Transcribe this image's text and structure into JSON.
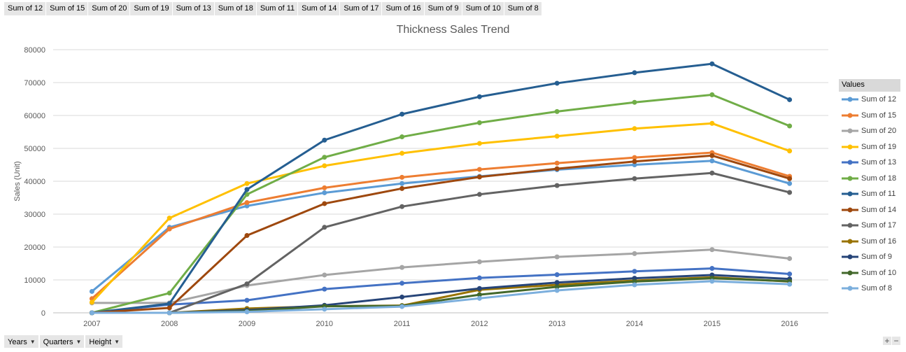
{
  "value_field_buttons": [
    "Sum of 12",
    "Sum of 15",
    "Sum of 20",
    "Sum of 19",
    "Sum of 13",
    "Sum of 18",
    "Sum of 11",
    "Sum of 14",
    "Sum of 17",
    "Sum of 16",
    "Sum of 9",
    "Sum of 10",
    "Sum of 8"
  ],
  "axis_field_buttons": [
    "Years",
    "Quarters",
    "Height"
  ],
  "zoom": {
    "plus": "+",
    "minus": "−"
  },
  "legend_title": "Values",
  "chart_data": {
    "type": "line",
    "title": "Thickness Sales Trend",
    "xlabel": "",
    "ylabel": "Sales (Unit)",
    "ylim": [
      0,
      80000
    ],
    "yticks": [
      0,
      10000,
      20000,
      30000,
      40000,
      50000,
      60000,
      70000,
      80000
    ],
    "ytick_labels": [
      "0",
      "10000",
      "20000",
      "30000",
      "40000",
      "50000",
      "60000",
      "70000",
      "80000"
    ],
    "x": [
      "2007",
      "2008",
      "2009",
      "2010",
      "2011",
      "2012",
      "2013",
      "2014",
      "2015",
      "2016"
    ],
    "grid": "horizontal",
    "legend": "right",
    "series": [
      {
        "name": "Sum of 12",
        "color": "#5b9bd5",
        "values": [
          6500,
          26000,
          32500,
          36500,
          39300,
          41500,
          43500,
          45000,
          46200,
          39300
        ]
      },
      {
        "name": "Sum of 15",
        "color": "#ed7d31",
        "values": [
          4300,
          25500,
          33500,
          38000,
          41200,
          43600,
          45500,
          47200,
          48700,
          41500
        ]
      },
      {
        "name": "Sum of 20",
        "color": "#a5a5a5",
        "values": [
          3000,
          3000,
          8300,
          11500,
          13800,
          15500,
          17000,
          18000,
          19200,
          16500
        ]
      },
      {
        "name": "Sum of 19",
        "color": "#ffc000",
        "values": [
          3200,
          28800,
          39300,
          44700,
          48500,
          51500,
          53700,
          56000,
          57600,
          49200
        ]
      },
      {
        "name": "Sum of 13",
        "color": "#4472c4",
        "values": [
          0,
          2500,
          3800,
          7200,
          9000,
          10600,
          11600,
          12600,
          13500,
          11800
        ]
      },
      {
        "name": "Sum of 18",
        "color": "#70ad47",
        "values": [
          0,
          6000,
          36000,
          47300,
          53500,
          57800,
          61200,
          64000,
          66300,
          56800
        ]
      },
      {
        "name": "Sum of 11",
        "color": "#255e91",
        "values": [
          0,
          2800,
          37500,
          52500,
          60400,
          65700,
          69800,
          73000,
          75700,
          64800
        ]
      },
      {
        "name": "Sum of 14",
        "color": "#9e480e",
        "values": [
          0,
          1500,
          23500,
          33200,
          37800,
          41300,
          43800,
          46000,
          47800,
          40800
        ]
      },
      {
        "name": "Sum of 17",
        "color": "#636363",
        "values": [
          0,
          0,
          8800,
          26000,
          32300,
          36000,
          38700,
          40800,
          42500,
          36600
        ]
      },
      {
        "name": "Sum of 16",
        "color": "#997300",
        "values": [
          0,
          0,
          1300,
          2000,
          2200,
          7000,
          8500,
          9800,
          10800,
          9500
        ]
      },
      {
        "name": "Sum of 9",
        "color": "#264478",
        "values": [
          0,
          0,
          800,
          2300,
          4800,
          7400,
          9200,
          10500,
          11500,
          10300
        ]
      },
      {
        "name": "Sum of 10",
        "color": "#43682b",
        "values": [
          0,
          0,
          500,
          2000,
          2100,
          5500,
          7900,
          9500,
          10500,
          9600
        ]
      },
      {
        "name": "Sum of 8",
        "color": "#7cafdd",
        "values": [
          0,
          0,
          300,
          1100,
          1900,
          4400,
          6800,
          8500,
          9600,
          8700
        ]
      }
    ]
  }
}
